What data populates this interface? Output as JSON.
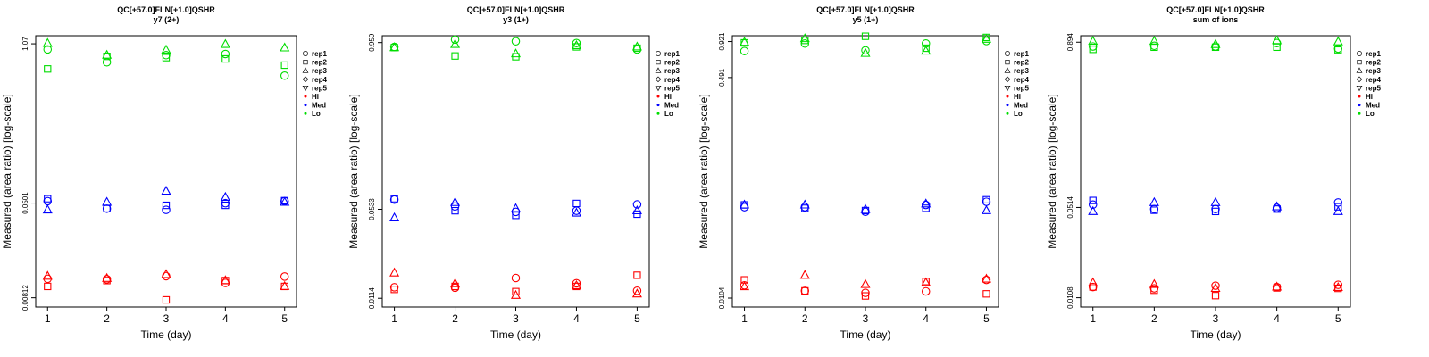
{
  "legend": {
    "entries": [
      {
        "label": "rep1",
        "kind": "shape",
        "shape": "circle"
      },
      {
        "label": "rep2",
        "kind": "shape",
        "shape": "square"
      },
      {
        "label": "rep3",
        "kind": "shape",
        "shape": "triangle-up"
      },
      {
        "label": "rep4",
        "kind": "shape",
        "shape": "diamond"
      },
      {
        "label": "rep5",
        "kind": "shape",
        "shape": "triangle-down"
      },
      {
        "label": "Hi",
        "kind": "dot",
        "color": "#ff0000"
      },
      {
        "label": "Med",
        "kind": "dot",
        "color": "#0000ff"
      },
      {
        "label": "Lo",
        "kind": "dot",
        "color": "#00dd00"
      }
    ]
  },
  "colors": {
    "Hi": "#ff0000",
    "Med": "#0000ff",
    "Lo": "#00dd00"
  },
  "chart_data": [
    {
      "type": "scatter",
      "title": "QC[+57.0]FLN[+1.0]QSHR",
      "subtitle": "y7 (2+)",
      "xlabel": "Time (day)",
      "ylabel": "Measured (area ratio) [log-scale]",
      "x_ticks": [
        "1",
        "2",
        "3",
        "4",
        "5"
      ],
      "y_scale": "log",
      "y_ticks": [
        {
          "value": 0.00812,
          "label": "0.00812"
        },
        {
          "value": 0.0501,
          "label": "0.0501"
        },
        {
          "value": 1.07,
          "label": "1.07"
        }
      ],
      "ylim": [
        0.0068,
        1.25
      ],
      "xlim": [
        0.8,
        5.2
      ],
      "series": [
        {
          "group": "Hi",
          "rep": "rep1",
          "values": [
            0.0117,
            0.0116,
            0.0123,
            0.0108,
            0.0122
          ]
        },
        {
          "group": "Hi",
          "rep": "rep2",
          "values": [
            0.0101,
            0.0113,
            0.0078,
            0.0113,
            0.0101
          ]
        },
        {
          "group": "Hi",
          "rep": "rep3",
          "values": [
            0.0123,
            0.0118,
            0.0127,
            0.0113,
            0.0101
          ]
        },
        {
          "group": "Med",
          "rep": "rep1",
          "values": [
            0.052,
            0.045,
            0.044,
            0.05,
            0.052
          ]
        },
        {
          "group": "Med",
          "rep": "rep2",
          "values": [
            0.0545,
            0.045,
            0.048,
            0.048,
            0.0525
          ]
        },
        {
          "group": "Med",
          "rep": "rep3",
          "values": [
            0.044,
            0.051,
            0.063,
            0.056,
            0.051
          ]
        },
        {
          "group": "Lo",
          "rep": "rep1",
          "values": [
            0.96,
            0.75,
            0.86,
            0.88,
            0.58
          ]
        },
        {
          "group": "Lo",
          "rep": "rep2",
          "values": [
            0.66,
            0.84,
            0.82,
            0.8,
            0.71
          ]
        },
        {
          "group": "Lo",
          "rep": "rep3",
          "values": [
            1.08,
            0.86,
            0.95,
            1.06,
            0.99
          ]
        }
      ]
    },
    {
      "type": "scatter",
      "title": "QC[+57.0]FLN[+1.0]QSHR",
      "subtitle": "y3 (1+)",
      "xlabel": "Time (day)",
      "ylabel": "Measured (area ratio) [log-scale]",
      "x_ticks": [
        "1",
        "2",
        "3",
        "4",
        "5"
      ],
      "y_scale": "log",
      "y_ticks": [
        {
          "value": 0.0114,
          "label": "0.0114"
        },
        {
          "value": 0.0533,
          "label": "0.0533"
        },
        {
          "value": 0.959,
          "label": "0.959"
        }
      ],
      "ylim": [
        0.0098,
        1.08
      ],
      "xlim": [
        0.8,
        5.2
      ],
      "series": [
        {
          "group": "Hi",
          "rep": "rep1",
          "values": [
            0.0138,
            0.0137,
            0.0162,
            0.0148,
            0.013
          ]
        },
        {
          "group": "Hi",
          "rep": "rep2",
          "values": [
            0.0133,
            0.014,
            0.0128,
            0.014,
            0.017
          ]
        },
        {
          "group": "Hi",
          "rep": "rep3",
          "values": [
            0.0177,
            0.0147,
            0.012,
            0.0142,
            0.0123
          ]
        },
        {
          "group": "Med",
          "rep": "rep1",
          "values": [
            0.063,
            0.056,
            0.051,
            0.052,
            0.058
          ]
        },
        {
          "group": "Med",
          "rep": "rep2",
          "values": [
            0.064,
            0.052,
            0.048,
            0.059,
            0.049
          ]
        },
        {
          "group": "Med",
          "rep": "rep3",
          "values": [
            0.046,
            0.06,
            0.054,
            0.05,
            0.052
          ]
        },
        {
          "group": "Lo",
          "rep": "rep1",
          "values": [
            0.89,
            1.01,
            0.98,
            0.95,
            0.85
          ]
        },
        {
          "group": "Lo",
          "rep": "rep2",
          "values": [
            0.88,
            0.76,
            0.75,
            0.89,
            0.87
          ]
        },
        {
          "group": "Lo",
          "rep": "rep3",
          "values": [
            0.88,
            0.93,
            0.79,
            0.91,
            0.89
          ]
        }
      ]
    },
    {
      "type": "scatter",
      "title": "QC[+57.0]FLN[+1.0]QSHR",
      "subtitle": "y5 (1+)",
      "xlabel": "Time (day)",
      "ylabel": "Measured (area ratio) [log-scale]",
      "x_ticks": [
        "1",
        "2",
        "3",
        "4",
        "5"
      ],
      "y_scale": "log",
      "y_ticks": [
        {
          "value": 0.0104,
          "label": "0.0104"
        },
        {
          "value": 0.491,
          "label": "0.491"
        },
        {
          "value": 0.921,
          "label": "0.921"
        }
      ],
      "ylim": [
        0.0089,
        1.02
      ],
      "xlim": [
        0.8,
        5.2
      ],
      "series": [
        {
          "group": "Hi",
          "rep": "rep1",
          "values": [
            0.013,
            0.0118,
            0.0114,
            0.0117,
            0.0143
          ]
        },
        {
          "group": "Hi",
          "rep": "rep2",
          "values": [
            0.0143,
            0.0118,
            0.0108,
            0.0139,
            0.0112
          ]
        },
        {
          "group": "Hi",
          "rep": "rep3",
          "values": [
            0.0127,
            0.0155,
            0.0132,
            0.0136,
            0.0145
          ]
        },
        {
          "group": "Med",
          "rep": "rep1",
          "values": [
            0.051,
            0.051,
            0.047,
            0.053,
            0.056
          ]
        },
        {
          "group": "Med",
          "rep": "rep2",
          "values": [
            0.053,
            0.05,
            0.048,
            0.05,
            0.058
          ]
        },
        {
          "group": "Med",
          "rep": "rep3",
          "values": [
            0.053,
            0.053,
            0.049,
            0.054,
            0.048
          ]
        },
        {
          "group": "Lo",
          "rep": "rep1",
          "values": [
            0.78,
            0.89,
            0.79,
            0.89,
            0.93
          ]
        },
        {
          "group": "Lo",
          "rep": "rep2",
          "values": [
            0.9,
            0.94,
            1.01,
            0.82,
            0.99
          ]
        },
        {
          "group": "Lo",
          "rep": "rep3",
          "values": [
            0.91,
            0.97,
            0.75,
            0.78,
            0.96
          ]
        }
      ]
    },
    {
      "type": "scatter",
      "title": "QC[+57.0]FLN[+1.0]QSHR",
      "subtitle": "sum of ions",
      "xlabel": "Time (day)",
      "ylabel": "Measured (area ratio) [log-scale]",
      "x_ticks": [
        "1",
        "2",
        "3",
        "4",
        "5"
      ],
      "y_scale": "log",
      "y_ticks": [
        {
          "value": 0.0108,
          "label": "0.0108"
        },
        {
          "value": 0.0514,
          "label": "0.0514"
        },
        {
          "value": 0.894,
          "label": "0.894"
        }
      ],
      "ylim": [
        0.0092,
        1.0
      ],
      "xlim": [
        0.8,
        5.2
      ],
      "series": [
        {
          "group": "Hi",
          "rep": "rep1",
          "values": [
            0.013,
            0.0127,
            0.0133,
            0.013,
            0.0135
          ]
        },
        {
          "group": "Hi",
          "rep": "rep2",
          "values": [
            0.013,
            0.0123,
            0.0112,
            0.0128,
            0.0127
          ]
        },
        {
          "group": "Hi",
          "rep": "rep3",
          "values": [
            0.014,
            0.0136,
            0.0127,
            0.013,
            0.0129
          ]
        },
        {
          "group": "Med",
          "rep": "rep1",
          "values": [
            0.054,
            0.05,
            0.05,
            0.051,
            0.056
          ]
        },
        {
          "group": "Med",
          "rep": "rep2",
          "values": [
            0.058,
            0.049,
            0.048,
            0.05,
            0.052
          ]
        },
        {
          "group": "Med",
          "rep": "rep3",
          "values": [
            0.048,
            0.056,
            0.056,
            0.052,
            0.048
          ]
        },
        {
          "group": "Lo",
          "rep": "rep1",
          "values": [
            0.83,
            0.84,
            0.83,
            0.88,
            0.8
          ]
        },
        {
          "group": "Lo",
          "rep": "rep2",
          "values": [
            0.79,
            0.82,
            0.82,
            0.82,
            0.78
          ]
        },
        {
          "group": "Lo",
          "rep": "rep3",
          "values": [
            0.91,
            0.91,
            0.86,
            0.92,
            0.9
          ]
        }
      ]
    }
  ]
}
